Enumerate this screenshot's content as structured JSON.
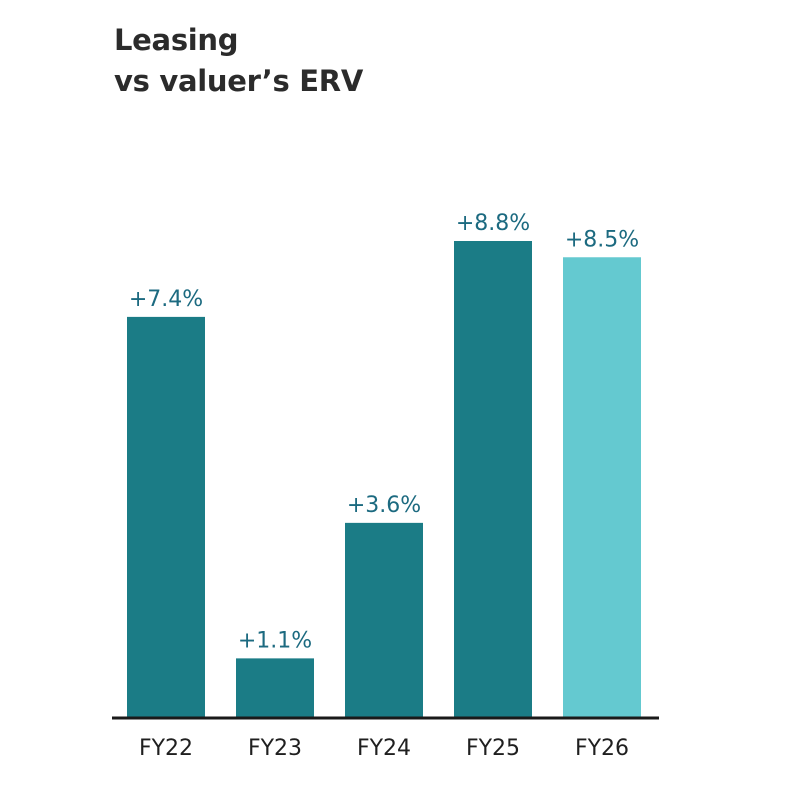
{
  "chart_data": {
    "type": "bar",
    "title_lines": [
      "Leasing",
      "vs valuer’s ERV"
    ],
    "categories": [
      "FY22",
      "FY23",
      "FY24",
      "FY25",
      "FY26"
    ],
    "values": [
      7.4,
      1.1,
      3.6,
      8.8,
      8.5
    ],
    "data_labels": [
      "+7.4%",
      "+1.1%",
      "+3.6%",
      "+8.8%",
      "+8.5%"
    ],
    "bar_colors": [
      "#1b7c86",
      "#1b7c86",
      "#1b7c86",
      "#1b7c86",
      "#64c9d0"
    ],
    "xlabel": "",
    "ylabel": "",
    "ylim": [
      0,
      8.8
    ],
    "grid": false,
    "legend": "none"
  }
}
